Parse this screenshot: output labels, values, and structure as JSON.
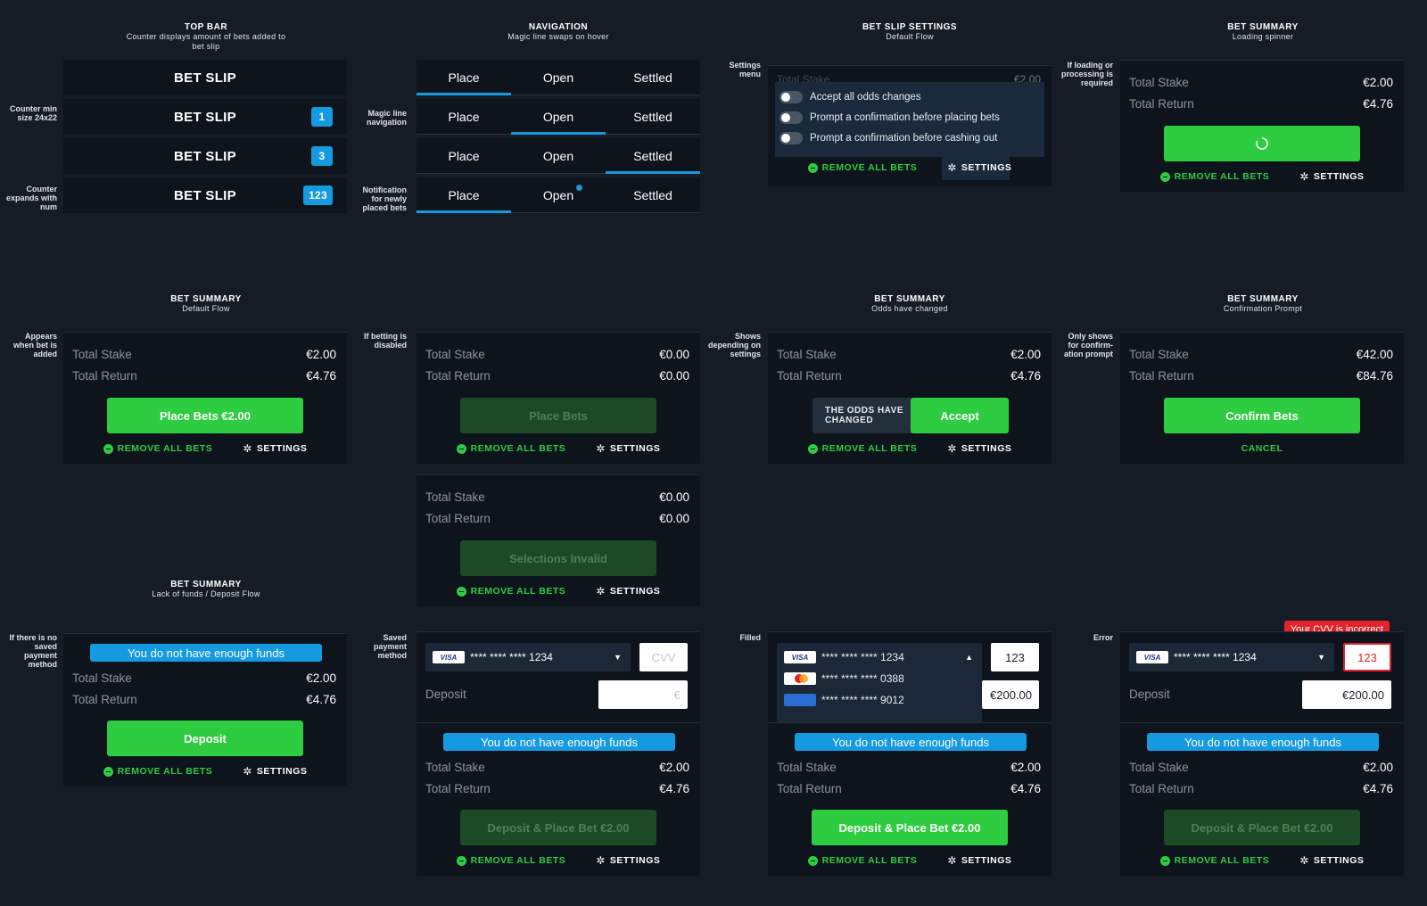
{
  "sections": {
    "top_bar": {
      "title": "TOP BAR",
      "sub": "Counter displays amount of bets added to bet slip"
    },
    "navigation": {
      "title": "NAVIGATION",
      "sub": "Magic line swaps on hover"
    },
    "settings": {
      "title": "BET SLIP SETTINGS",
      "sub": "Default Flow"
    },
    "loading": {
      "title": "BET SUMMARY",
      "sub": "Loading spinner"
    },
    "default": {
      "title": "BET SUMMARY",
      "sub": "Default Flow"
    },
    "odds": {
      "title": "BET SUMMARY",
      "sub": "Odds have changed"
    },
    "confirm": {
      "title": "BET SUMMARY",
      "sub": "Confirmation Prompt"
    },
    "funds": {
      "title": "BET SUMMARY",
      "sub": "Lack of funds / Deposit Flow"
    }
  },
  "notes": {
    "counter_min": "Counter min size 24x22",
    "counter_expands": "Counter expands with num",
    "magic_line": "Magic line navigation",
    "notification": "Notification for newly placed bets",
    "settings_menu": "Settings menu",
    "loading": "If loading or processing is required",
    "appears": "Appears when bet is added",
    "disabled": "If betting is disabled",
    "depending": "Shows depending on settings",
    "only_confirm": "Only shows for confirm-ation prompt",
    "no_saved": "If there is no saved payment method",
    "saved": "Saved payment method",
    "filled": "Filled",
    "error": "Error"
  },
  "topbar": {
    "label": "BET SLIP",
    "counters": [
      "1",
      "3",
      "123"
    ]
  },
  "nav": {
    "place": "Place",
    "open": "Open",
    "settled": "Settled"
  },
  "labels": {
    "total_stake": "Total Stake",
    "total_return": "Total Return",
    "remove_all": "REMOVE ALL BETS",
    "settings": "SETTINGS",
    "deposit": "Deposit",
    "cancel": "CANCEL",
    "no_funds": "You do not have enough funds"
  },
  "values": {
    "stake_2": "€2.00",
    "return_476": "€4.76",
    "zero": "€0.00",
    "stake_42": "€42.00",
    "return_8476": "€84.76",
    "amount_200": "€200.00"
  },
  "buttons": {
    "place_bets_amount": "Place Bets €2.00",
    "place_bets": "Place Bets",
    "selections_invalid": "Selections Invalid",
    "accept": "Accept",
    "odds_changed": "THE ODDS HAVE CHANGED",
    "confirm_bets": "Confirm Bets",
    "deposit": "Deposit",
    "deposit_place": "Deposit & Place Bet €2.00"
  },
  "settings_menu": {
    "peek_label": "Total Stake",
    "peek_value": "€2.00",
    "options": [
      "Accept all odds changes",
      "Prompt a confirmation before placing bets",
      "Prompt a confirmation before cashing out"
    ]
  },
  "payment": {
    "card_1234": "**** **** **** 1234",
    "card_0388": "**** **** **** 0388",
    "card_9012": "**** **** **** 9012",
    "visa": "VISA",
    "cvv_placeholder": "CVV",
    "euro_placeholder": "€",
    "cvv_value": "123",
    "cvv_error": "Your CVV is incorrect"
  }
}
